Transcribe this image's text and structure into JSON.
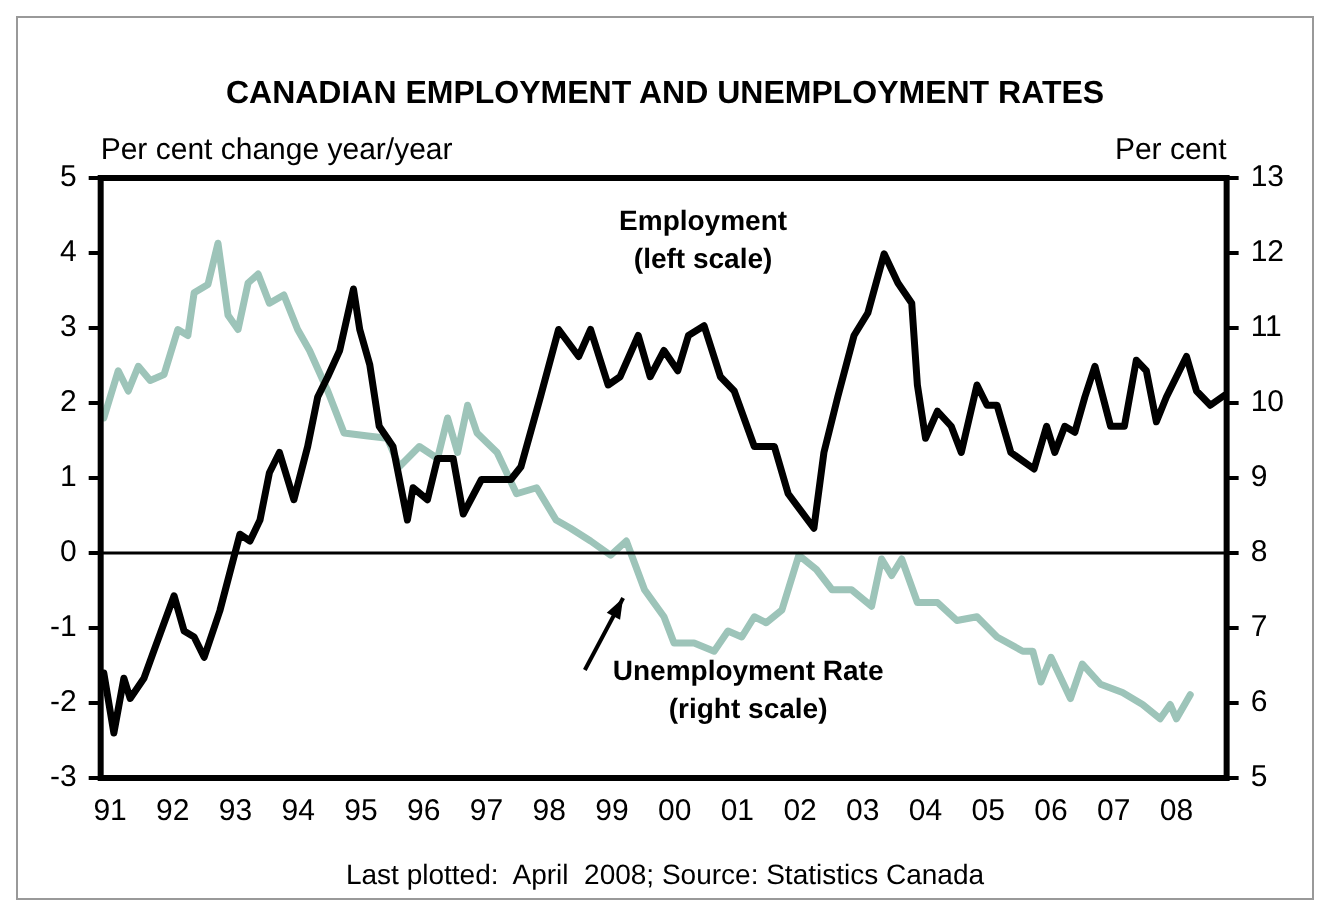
{
  "chart_data": {
    "type": "line",
    "title": "CANADIAN EMPLOYMENT AND UNEMPLOYMENT RATES",
    "ylabel": "Per cent change year/year",
    "y2label": "Per cent",
    "xlim": [
      1990.85,
      2008.8
    ],
    "xticks": [
      {
        "value": 1991,
        "label": "91"
      },
      {
        "value": 1992,
        "label": "92"
      },
      {
        "value": 1993,
        "label": "93"
      },
      {
        "value": 1994,
        "label": "94"
      },
      {
        "value": 1995,
        "label": "95"
      },
      {
        "value": 1996,
        "label": "96"
      },
      {
        "value": 1997,
        "label": "97"
      },
      {
        "value": 1998,
        "label": "98"
      },
      {
        "value": 1999,
        "label": "99"
      },
      {
        "value": 2000,
        "label": "00"
      },
      {
        "value": 2001,
        "label": "01"
      },
      {
        "value": 2002,
        "label": "02"
      },
      {
        "value": 2003,
        "label": "03"
      },
      {
        "value": 2004,
        "label": "04"
      },
      {
        "value": 2005,
        "label": "05"
      },
      {
        "value": 2006,
        "label": "06"
      },
      {
        "value": 2007,
        "label": "07"
      },
      {
        "value": 2008,
        "label": "08"
      }
    ],
    "ylim": [
      -3,
      5
    ],
    "yticks": [
      -3,
      -2,
      -1,
      0,
      1,
      2,
      3,
      4,
      5
    ],
    "y2lim": [
      5,
      13
    ],
    "y2ticks": [
      5,
      6,
      7,
      8,
      9,
      10,
      11,
      12,
      13
    ],
    "grid": false,
    "legend": false,
    "marker": "none",
    "line_style": "solid",
    "ref_lines": [
      {
        "axis": "y",
        "value": 0,
        "color": "#000000"
      }
    ],
    "series": [
      {
        "name": "Employment\n(left scale)",
        "color": "#000000",
        "x": [
          1990.9,
          1991.06,
          1991.22,
          1991.32,
          1991.54,
          1991.7,
          1992.02,
          1992.18,
          1992.34,
          1992.5,
          1992.75,
          1993.07,
          1993.23,
          1993.39,
          1993.54,
          1993.7,
          1993.93,
          1994.15,
          1994.31,
          1994.47,
          1994.66,
          1994.88,
          1994.98,
          1995.14,
          1995.29,
          1995.51,
          1995.74,
          1995.83,
          1996.06,
          1996.22,
          1996.47,
          1996.63,
          1996.92,
          1997.39,
          1997.55,
          1997.86,
          1998.15,
          1998.47,
          1998.66,
          1998.94,
          1999.13,
          1999.42,
          1999.61,
          1999.83,
          2000.05,
          2000.22,
          2000.47,
          2000.73,
          2000.95,
          2001.27,
          2001.59,
          2001.81,
          2002.22,
          2002.38,
          2002.6,
          2002.86,
          2003.08,
          2003.34,
          2003.56,
          2003.78,
          2003.87,
          2004.0,
          2004.19,
          2004.41,
          2004.57,
          2004.82,
          2004.98,
          2005.14,
          2005.36,
          2005.73,
          2005.93,
          2006.06,
          2006.22,
          2006.38,
          2006.54,
          2006.7,
          2006.95,
          2007.17,
          2007.36,
          2007.52,
          2007.68,
          2007.84,
          2008.16,
          2008.32,
          2008.54,
          2008.76
        ],
        "values": [
          -1.6,
          -2.4,
          -1.67,
          -1.94,
          -1.67,
          -1.3,
          -0.57,
          -1.04,
          -1.12,
          -1.39,
          -0.77,
          0.25,
          0.16,
          0.44,
          1.07,
          1.34,
          0.71,
          1.42,
          2.08,
          2.35,
          2.7,
          3.52,
          2.98,
          2.51,
          1.69,
          1.42,
          0.44,
          0.87,
          0.71,
          1.26,
          1.26,
          0.52,
          0.98,
          0.98,
          1.15,
          2.08,
          2.98,
          2.62,
          2.98,
          2.24,
          2.35,
          2.9,
          2.35,
          2.7,
          2.43,
          2.9,
          3.03,
          2.35,
          2.16,
          1.42,
          1.42,
          0.79,
          0.33,
          1.34,
          2.08,
          2.9,
          3.2,
          3.99,
          3.6,
          3.33,
          2.24,
          1.53,
          1.89,
          1.69,
          1.34,
          2.24,
          1.97,
          1.97,
          1.34,
          1.12,
          1.69,
          1.34,
          1.69,
          1.61,
          2.08,
          2.49,
          1.69,
          1.69,
          2.57,
          2.43,
          1.75,
          2.08,
          2.62,
          2.16,
          1.97,
          2.1
        ]
      },
      {
        "name": "Unemployment Rate\n(right scale)",
        "color": "#9dc4b9",
        "axis": "y2",
        "x": [
          1990.9,
          1991.13,
          1991.29,
          1991.45,
          1991.64,
          1991.86,
          1992.08,
          1992.24,
          1992.34,
          1992.56,
          1992.72,
          1992.88,
          1993.04,
          1993.2,
          1993.36,
          1993.54,
          1993.77,
          1993.99,
          1994.18,
          1994.47,
          1994.73,
          1995.11,
          1995.42,
          1995.61,
          1995.93,
          1996.22,
          1996.38,
          1996.54,
          1996.7,
          1996.85,
          1997.17,
          1997.48,
          1997.8,
          1998.11,
          1998.34,
          1998.66,
          1998.98,
          1999.23,
          1999.52,
          1999.83,
          1999.99,
          2000.31,
          2000.63,
          2000.85,
          2001.07,
          2001.27,
          2001.46,
          2001.71,
          2001.98,
          2002.26,
          2002.51,
          2002.82,
          2003.14,
          2003.3,
          2003.46,
          2003.62,
          2003.87,
          2004.19,
          2004.5,
          2004.82,
          2005.14,
          2005.55,
          2005.71,
          2005.84,
          2006.0,
          2006.31,
          2006.5,
          2006.79,
          2007.14,
          2007.46,
          2007.74,
          2007.9,
          2008.0,
          2008.22
        ],
        "values": [
          9.8,
          10.43,
          10.16,
          10.49,
          10.3,
          10.38,
          10.98,
          10.9,
          11.47,
          11.58,
          12.13,
          11.17,
          10.98,
          11.6,
          11.72,
          11.33,
          11.44,
          10.98,
          10.7,
          10.16,
          9.6,
          9.56,
          9.53,
          9.15,
          9.42,
          9.26,
          9.8,
          9.34,
          9.97,
          9.6,
          9.34,
          8.79,
          8.87,
          8.44,
          8.33,
          8.16,
          7.97,
          8.16,
          7.51,
          7.15,
          6.8,
          6.8,
          6.69,
          6.96,
          6.88,
          7.15,
          7.07,
          7.24,
          7.97,
          7.78,
          7.51,
          7.51,
          7.29,
          7.92,
          7.7,
          7.92,
          7.34,
          7.34,
          7.1,
          7.15,
          6.88,
          6.69,
          6.69,
          6.28,
          6.61,
          6.06,
          6.52,
          6.25,
          6.14,
          5.98,
          5.79,
          5.98,
          5.79,
          6.11
        ]
      }
    ],
    "annotations": [
      "Last plotted:  April  2008; Source: Statistics Canada"
    ]
  }
}
